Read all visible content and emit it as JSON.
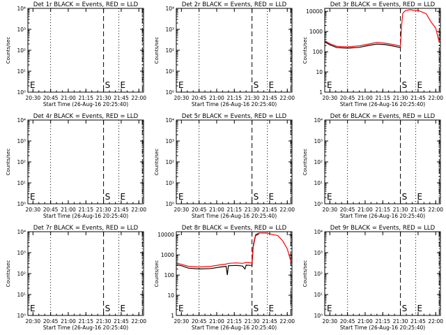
{
  "figure": {
    "xlabel": "Start Time (26-Aug-16 20:25:40)",
    "ylabel": "Counts/sec",
    "x_tick_labels": [
      "20:30",
      "20:45",
      "21:00",
      "21:15",
      "21:30",
      "21:45",
      "22:00"
    ],
    "markers": {
      "start_label": "S",
      "end_label": "E",
      "left_label": "E"
    },
    "colors": {
      "events": "#000000",
      "lld": "#ff0000",
      "axes": "#000000",
      "background": "#ffffff"
    }
  },
  "chart_data": [
    {
      "type": "line",
      "title": "Det 1r BLACK = Events, RED = LLD",
      "xlabel": "Start Time (26-Aug-16 20:25:40)",
      "ylabel": "Counts/sec",
      "y_scale": "log",
      "ylim": [
        1,
        10000
      ],
      "y_tick_labels": [
        "10⁰",
        "10¹",
        "10²",
        "10³",
        "10⁴"
      ],
      "series": []
    },
    {
      "type": "line",
      "title": "Det 2r BLACK = Events, RED = LLD",
      "xlabel": "Start Time (26-Aug-16 20:25:40)",
      "ylabel": "Counts/sec",
      "y_scale": "log",
      "ylim": [
        1,
        10000
      ],
      "y_tick_labels": [
        "10⁰",
        "10¹",
        "10²",
        "10³",
        "10⁴"
      ],
      "series": []
    },
    {
      "type": "line",
      "title": "Det 3r BLACK = Events, RED = LLD",
      "xlabel": "Start Time (26-Aug-16 20:25:40)",
      "ylabel": "Counts/sec",
      "y_scale": "log",
      "ylim": [
        1,
        14000
      ],
      "y_tick_labels": [
        "1",
        "10",
        "100",
        "1000",
        "10000"
      ],
      "series": [
        {
          "color": "#000000",
          "points": [
            [
              "20:26",
              300
            ],
            [
              "20:30",
              220
            ],
            [
              "20:36",
              160
            ],
            [
              "20:45",
              150
            ],
            [
              "20:55",
              165
            ],
            [
              "21:03",
              205
            ],
            [
              "21:10",
              240
            ],
            [
              "21:17",
              225
            ],
            [
              "21:24",
              190
            ],
            [
              "21:30",
              160
            ]
          ]
        },
        {
          "color": "#ff0000",
          "points": [
            [
              "20:26",
              340
            ],
            [
              "20:30",
              250
            ],
            [
              "20:36",
              185
            ],
            [
              "20:45",
              175
            ],
            [
              "20:55",
              195
            ],
            [
              "21:03",
              240
            ],
            [
              "21:10",
              290
            ],
            [
              "21:17",
              265
            ],
            [
              "21:24",
              225
            ],
            [
              "21:30",
              190
            ],
            [
              "21:31",
              2000
            ],
            [
              "21:32",
              8000
            ],
            [
              "21:34",
              10500
            ],
            [
              "21:38",
              12000
            ],
            [
              "21:42",
              11000
            ],
            [
              "21:45",
              11000
            ],
            [
              "21:48",
              9500
            ],
            [
              "21:52",
              7500
            ],
            [
              "21:56",
              3000
            ],
            [
              "22:00",
              1500
            ],
            [
              "22:03",
              300
            ]
          ]
        }
      ]
    },
    {
      "type": "line",
      "title": "Det 4r BLACK = Events, RED = LLD",
      "xlabel": "Start Time (26-Aug-16 20:25:40)",
      "ylabel": "Counts/sec",
      "y_scale": "log",
      "ylim": [
        1,
        10000
      ],
      "y_tick_labels": [
        "10⁰",
        "10¹",
        "10²",
        "10³",
        "10⁴"
      ],
      "series": []
    },
    {
      "type": "line",
      "title": "Det 5r BLACK = Events, RED = LLD",
      "xlabel": "Start Time (26-Aug-16 20:25:40)",
      "ylabel": "Counts/sec",
      "y_scale": "log",
      "ylim": [
        1,
        10000
      ],
      "y_tick_labels": [
        "10⁰",
        "10¹",
        "10²",
        "10³",
        "10⁴"
      ],
      "series": []
    },
    {
      "type": "line",
      "title": "Det 6r BLACK = Events, RED = LLD",
      "xlabel": "Start Time (26-Aug-16 20:25:40)",
      "ylabel": "Counts/sec",
      "y_scale": "log",
      "ylim": [
        1,
        10000
      ],
      "y_tick_labels": [
        "10⁰",
        "10¹",
        "10²",
        "10³",
        "10⁴"
      ],
      "series": []
    },
    {
      "type": "line",
      "title": "Det 7r BLACK = Events, RED = LLD",
      "xlabel": "Start Time (26-Aug-16 20:25:40)",
      "ylabel": "Counts/sec",
      "y_scale": "log",
      "ylim": [
        1,
        10000
      ],
      "y_tick_labels": [
        "10⁰",
        "10¹",
        "10²",
        "10³",
        "10⁴"
      ],
      "series": []
    },
    {
      "type": "line",
      "title": "Det 8r BLACK = Events, RED = LLD",
      "xlabel": "Start Time (26-Aug-16 20:25:40)",
      "ylabel": "Counts/sec",
      "y_scale": "log",
      "ylim": [
        1,
        14000
      ],
      "y_tick_labels": [
        "1",
        "10",
        "100",
        "1000",
        "10000"
      ],
      "series": [
        {
          "color": "#000000",
          "points": [
            [
              "20:26",
              320
            ],
            [
              "20:30",
              290
            ],
            [
              "20:36",
              220
            ],
            [
              "20:45",
              200
            ],
            [
              "20:55",
              210
            ],
            [
              "21:03",
              250
            ],
            [
              "21:08",
              270
            ],
            [
              "21:09",
              100
            ],
            [
              "21:10",
              290
            ],
            [
              "21:17",
              300
            ],
            [
              "21:22",
              280
            ],
            [
              "21:24",
              200
            ],
            [
              "21:25",
              310
            ],
            [
              "21:30",
              300
            ],
            [
              "21:31",
              2500
            ],
            [
              "21:33",
              9000
            ],
            [
              "21:36",
              11000
            ]
          ]
        },
        {
          "color": "#ff0000",
          "points": [
            [
              "20:26",
              380
            ],
            [
              "20:30",
              340
            ],
            [
              "20:36",
              270
            ],
            [
              "20:45",
              250
            ],
            [
              "20:55",
              270
            ],
            [
              "21:03",
              320
            ],
            [
              "21:08",
              350
            ],
            [
              "21:10",
              380
            ],
            [
              "21:17",
              400
            ],
            [
              "21:22",
              380
            ],
            [
              "21:25",
              420
            ],
            [
              "21:30",
              400
            ],
            [
              "21:31",
              3000
            ],
            [
              "21:33",
              10000
            ],
            [
              "21:36",
              12000
            ],
            [
              "21:42",
              12000
            ],
            [
              "21:48",
              10000
            ],
            [
              "21:52",
              9000
            ],
            [
              "21:56",
              5000
            ],
            [
              "22:00",
              2000
            ],
            [
              "22:03",
              500
            ]
          ]
        }
      ]
    },
    {
      "type": "line",
      "title": "Det 9r BLACK = Events, RED = LLD",
      "xlabel": "Start Time (26-Aug-16 20:25:40)",
      "ylabel": "Counts/sec",
      "y_scale": "log",
      "ylim": [
        1,
        10000
      ],
      "y_tick_labels": [
        "10⁰",
        "10¹",
        "10²",
        "10³",
        "10⁴"
      ],
      "series": []
    }
  ]
}
